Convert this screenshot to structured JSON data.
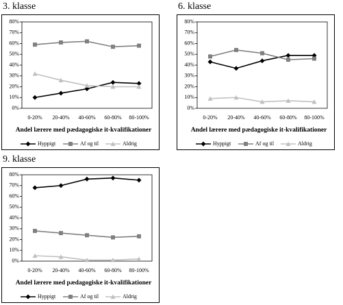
{
  "chart_data": [
    {
      "type": "line",
      "title": "3. klasse",
      "x_label": "Andel lærere med pædagogiske it-kvalifikationer",
      "categories": [
        "0-20%",
        "20-40%",
        "40-60%",
        "60-80%",
        "80-100%"
      ],
      "ylim": [
        0,
        80
      ],
      "yticks": [
        {
          "value": 0,
          "label": "0%"
        },
        {
          "value": 10,
          "label": "10%"
        },
        {
          "value": 20,
          "label": "20%"
        },
        {
          "value": 30,
          "label": "30%"
        },
        {
          "value": 40,
          "label": "40%"
        },
        {
          "value": 50,
          "label": "50%"
        },
        {
          "value": 60,
          "label": "60%"
        },
        {
          "value": 70,
          "label": "70%"
        },
        {
          "value": 80,
          "label": "80%"
        }
      ],
      "series": [
        {
          "name": "Hyppigt",
          "color": "#000000",
          "marker": "diamond",
          "values": [
            10,
            14,
            18,
            24,
            23
          ]
        },
        {
          "name": "Af og til",
          "color": "#808080",
          "marker": "square",
          "values": [
            59,
            61,
            62,
            57,
            58
          ]
        },
        {
          "name": "Aldrig",
          "color": "#c0c0c0",
          "marker": "triangle",
          "values": [
            32,
            26,
            21,
            20,
            20
          ]
        }
      ]
    },
    {
      "type": "line",
      "title": "6. klasse",
      "x_label": "Andel lærere med pædagogiske it-kvalifikationer",
      "categories": [
        "0-20%",
        "20-40%",
        "40-60%",
        "60-80%",
        "80-100%"
      ],
      "ylim": [
        0,
        80
      ],
      "yticks": [
        {
          "value": 0,
          "label": "0%"
        },
        {
          "value": 10,
          "label": "10%"
        },
        {
          "value": 20,
          "label": "20%"
        },
        {
          "value": 30,
          "label": "30%"
        },
        {
          "value": 40,
          "label": "40%"
        },
        {
          "value": 50,
          "label": "50%"
        },
        {
          "value": 60,
          "label": "60%"
        },
        {
          "value": 70,
          "label": "70%"
        },
        {
          "value": 80,
          "label": "80%"
        }
      ],
      "series": [
        {
          "name": "Hyppigt",
          "color": "#000000",
          "marker": "diamond",
          "values": [
            43,
            37,
            44,
            49,
            49
          ]
        },
        {
          "name": "Af og til",
          "color": "#808080",
          "marker": "square",
          "values": [
            48,
            54,
            51,
            45,
            46
          ]
        },
        {
          "name": "Aldrig",
          "color": "#c0c0c0",
          "marker": "triangle",
          "values": [
            9,
            10,
            6,
            7,
            6
          ]
        }
      ]
    },
    {
      "type": "line",
      "title": "9. klasse",
      "x_label": "Andel lærere med pædagogiske it-kvalifikationer",
      "categories": [
        "0-20%",
        "20-40%",
        "40-60%",
        "60-80%",
        "80-100%"
      ],
      "ylim": [
        0,
        80
      ],
      "yticks": [
        {
          "value": 0,
          "label": "0%"
        },
        {
          "value": 10,
          "label": "10%"
        },
        {
          "value": 20,
          "label": "20%"
        },
        {
          "value": 30,
          "label": "30%"
        },
        {
          "value": 40,
          "label": "40%"
        },
        {
          "value": 50,
          "label": "50%"
        },
        {
          "value": 60,
          "label": "60%"
        },
        {
          "value": 70,
          "label": "70%"
        },
        {
          "value": 80,
          "label": "80%"
        }
      ],
      "series": [
        {
          "name": "Hyppigt",
          "color": "#000000",
          "marker": "diamond",
          "values": [
            68,
            70,
            76,
            77,
            75
          ]
        },
        {
          "name": "Af og til",
          "color": "#808080",
          "marker": "square",
          "values": [
            28,
            26,
            24,
            22,
            23
          ]
        },
        {
          "name": "Aldrig",
          "color": "#c0c0c0",
          "marker": "triangle",
          "values": [
            5,
            4,
            1,
            1,
            2
          ]
        }
      ]
    }
  ]
}
